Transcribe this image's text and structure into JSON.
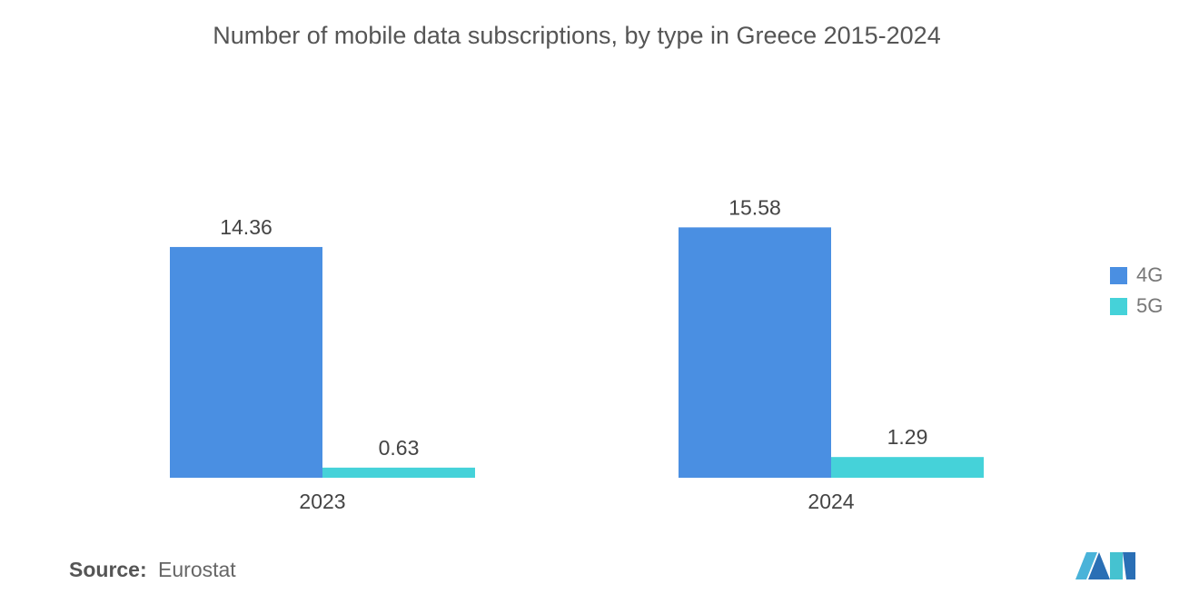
{
  "colors": {
    "4G": "#4a8fe2",
    "5G": "#45d2d9"
  },
  "source": {
    "label": "Source:",
    "value": "Eurostat"
  },
  "logo": {
    "icon": "mordor-logo-icon"
  },
  "chart_data": {
    "type": "bar",
    "title": "Number of mobile data subscriptions, by type in Greece 2015-2024",
    "categories": [
      "2023",
      "2024"
    ],
    "series": [
      {
        "name": "4G",
        "values": [
          14.36,
          15.58
        ],
        "labels": [
          "14.36",
          "15.58"
        ]
      },
      {
        "name": "5G",
        "values": [
          0.63,
          1.29
        ],
        "labels": [
          "0.63",
          "1.29"
        ]
      }
    ],
    "xlabel": "",
    "ylabel": "",
    "ylim": [
      0,
      16.9
    ],
    "grid": false,
    "legend_position": "right"
  }
}
